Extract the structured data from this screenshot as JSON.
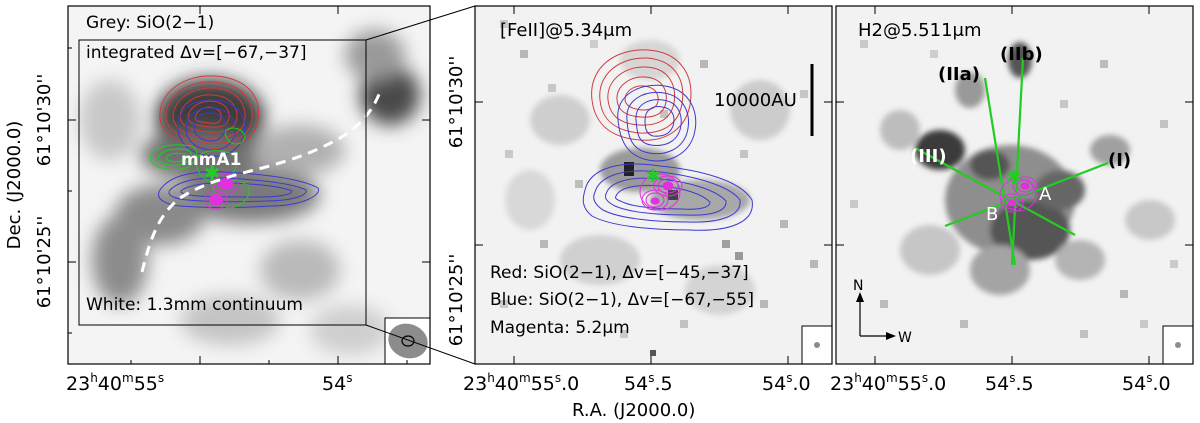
{
  "panels": {
    "left": {
      "title_line1": "Grey: SiO(2−1)",
      "title_line2": "integrated Δv=[−67,−37]",
      "source_label": "mmA1",
      "footer": "White: 1.3mm continuum",
      "x_ticks": [
        {
          "h": "23",
          "m": "40",
          "s": "55",
          "frac": ""
        },
        {
          "h": "",
          "m": "",
          "s": "54",
          "frac": ""
        }
      ]
    },
    "middle": {
      "title": "[FeII]@5.34μm",
      "scale_label": "10000AU",
      "legend": [
        "Red: SiO(2−1), Δv=[−45,−37]",
        "Blue: SiO(2−1), Δv=[−67,−55]",
        "Magenta: 5.2μm"
      ],
      "x_ticks": [
        {
          "h": "23",
          "m": "40",
          "s": "55",
          "frac": ".0"
        },
        {
          "h": "",
          "m": "",
          "s": "54",
          "frac": ".5"
        },
        {
          "h": "",
          "m": "",
          "s": "54",
          "frac": ".0"
        }
      ]
    },
    "right": {
      "title": "H2@5.511μm",
      "jets": [
        "(IIa)",
        "(IIb)",
        "(III)",
        "(I)"
      ],
      "sources": [
        "A",
        "B"
      ],
      "compass": {
        "north": "N",
        "west": "W"
      },
      "x_ticks": [
        {
          "h": "23",
          "m": "40",
          "s": "55",
          "frac": ".0"
        },
        {
          "h": "",
          "m": "",
          "s": "54",
          "frac": ".5"
        },
        {
          "h": "",
          "m": "",
          "s": "54",
          "frac": ".0"
        }
      ]
    }
  },
  "axes": {
    "xlabel": "R.A. (J2000.0)",
    "ylabel": "Dec. (J2000.0)",
    "y_ticks_left": [
      "61°10'30''",
      "61°10'25''"
    ],
    "y_ticks_middle": [
      "61°10'30''",
      "61°10'25''"
    ]
  },
  "colors": {
    "red_contour": "#d23a3a",
    "blue_contour": "#3b3bd0",
    "magenta": "#e030e0",
    "green": "#22cc22"
  }
}
